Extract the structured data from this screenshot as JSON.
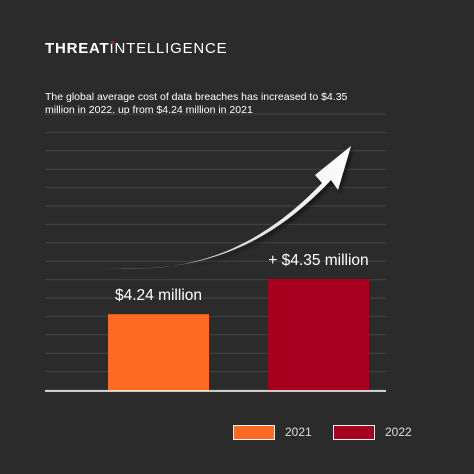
{
  "brand": {
    "part1": "THREAT",
    "i_letter": "I",
    "part2": "NTELL",
    "i_letter2": "I",
    "part3": "GENCE",
    "accent_color": "#c8102e"
  },
  "chart_data": {
    "type": "bar",
    "title": "The global average cost of data breaches has increased to $4.35 million in 2022, up from $4.24 million in 2021",
    "categories": [
      "2021",
      "2022"
    ],
    "values": [
      4.24,
      4.35
    ],
    "unit": "million USD",
    "data_labels": [
      "$4.24 million",
      "+ $4.35 million"
    ],
    "colors": [
      "#ff6a22",
      "#a6001f"
    ],
    "legend": [
      "2021",
      "2022"
    ],
    "legend_position": "bottom-right",
    "xlabel": "",
    "ylabel": "",
    "grid": true,
    "trend_arrow": true
  },
  "colors": {
    "background": "#2b2b2b",
    "grid": "#444444",
    "baseline": "#ffffff"
  }
}
